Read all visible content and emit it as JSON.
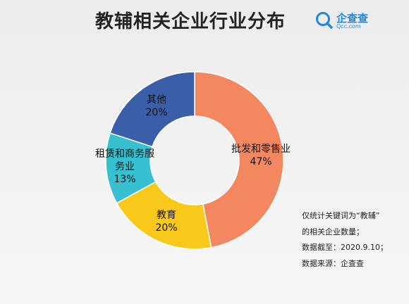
{
  "title": "教辅相关企业行业分布",
  "logo": {
    "name": "企查查",
    "domain": "Qcc.com",
    "icon": "qcc-search-logo-icon"
  },
  "chart_data": {
    "type": "pie",
    "style": "donut",
    "title": "教辅相关企业行业分布",
    "slices": [
      {
        "label": "批发和零售业",
        "value": 47,
        "display": "47%",
        "color": "#F38760"
      },
      {
        "label": "教育",
        "value": 20,
        "display": "20%",
        "color": "#F8C81B"
      },
      {
        "label": "租赁和商务服务业",
        "value": 13,
        "display": "13%",
        "color": "#37C0CF"
      },
      {
        "label": "其他",
        "value": 20,
        "display": "20%",
        "color": "#3A5FA8"
      }
    ]
  },
  "notes": [
    "仅统计关键词为“教辅”",
    "的相关企业数量；",
    "数据截至：2020.9.10；",
    "数据来源：企查查"
  ]
}
